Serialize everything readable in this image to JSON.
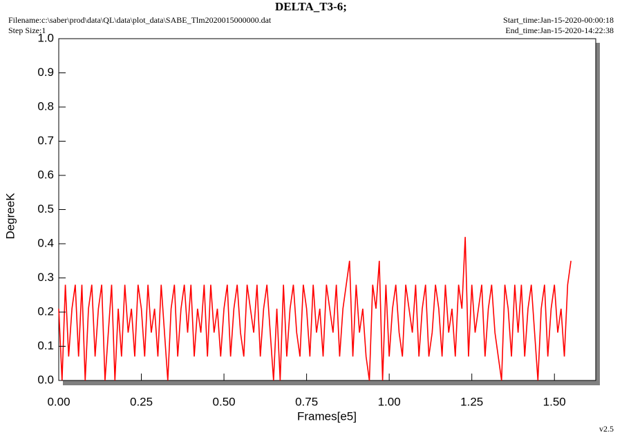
{
  "chart_data": {
    "type": "line",
    "title": "DELTA_T3-6;",
    "filename": "Filename:c:\\saber\\prod\\data\\QL\\data\\plot_data\\SABE_Tlm2020015000000.dat",
    "step_size": "Step Size:1",
    "start_time": "Start_time:Jan-15-2020-00:00:18",
    "end_time": "End_time:Jan-15-2020-14:22:38",
    "x_label": "Frames[e5]",
    "y_label": "DegreeK",
    "version": "v2.5",
    "color": "#ff0000",
    "xlim": [
      0,
      1.625
    ],
    "ylim": [
      0,
      1
    ],
    "xticks": [
      {
        "value": 0,
        "label": "0.00"
      },
      0.25,
      {
        "value": 0.5,
        "label": "0.50"
      },
      0.75,
      {
        "value": 1,
        "label": "1.00"
      },
      1.25,
      {
        "value": 1.5,
        "label": "1.50"
      }
    ],
    "yticks": [
      {
        "value": 0,
        "label": "0.0"
      },
      0.1,
      0.2,
      0.3,
      0.4,
      0.5,
      0.6,
      0.7,
      0.8,
      0.9,
      {
        "value": 1,
        "label": "1.0"
      }
    ],
    "x": [
      0.0,
      0.01,
      0.02,
      0.03,
      0.04,
      0.05,
      0.06,
      0.07,
      0.08,
      0.09,
      0.1,
      0.11,
      0.12,
      0.13,
      0.14,
      0.15,
      0.16,
      0.17,
      0.18,
      0.19,
      0.2,
      0.21,
      0.22,
      0.23,
      0.24,
      0.25,
      0.26,
      0.27,
      0.28,
      0.29,
      0.3,
      0.31,
      0.32,
      0.33,
      0.34,
      0.35,
      0.36,
      0.37,
      0.38,
      0.39,
      0.4,
      0.41,
      0.42,
      0.43,
      0.44,
      0.45,
      0.46,
      0.47,
      0.48,
      0.49,
      0.5,
      0.51,
      0.52,
      0.53,
      0.54,
      0.55,
      0.56,
      0.57,
      0.58,
      0.59,
      0.6,
      0.61,
      0.62,
      0.63,
      0.64,
      0.65,
      0.66,
      0.67,
      0.68,
      0.69,
      0.7,
      0.71,
      0.72,
      0.73,
      0.74,
      0.75,
      0.76,
      0.77,
      0.78,
      0.79,
      0.8,
      0.81,
      0.82,
      0.83,
      0.84,
      0.85,
      0.86,
      0.87,
      0.88,
      0.89,
      0.9,
      0.91,
      0.92,
      0.93,
      0.94,
      0.95,
      0.96,
      0.97,
      0.98,
      0.99,
      1.0,
      1.01,
      1.02,
      1.03,
      1.04,
      1.05,
      1.06,
      1.07,
      1.08,
      1.09,
      1.1,
      1.11,
      1.12,
      1.13,
      1.14,
      1.15,
      1.16,
      1.17,
      1.18,
      1.19,
      1.2,
      1.21,
      1.22,
      1.23,
      1.24,
      1.25,
      1.26,
      1.27,
      1.28,
      1.29,
      1.3,
      1.31,
      1.32,
      1.33,
      1.34,
      1.35,
      1.36,
      1.37,
      1.38,
      1.39,
      1.4,
      1.41,
      1.42,
      1.43,
      1.44,
      1.45,
      1.46,
      1.47,
      1.48,
      1.49,
      1.5,
      1.51,
      1.52,
      1.53,
      1.54,
      1.55
    ],
    "values": [
      0.21,
      0.0,
      0.28,
      0.07,
      0.21,
      0.28,
      0.07,
      0.28,
      0.0,
      0.21,
      0.28,
      0.07,
      0.21,
      0.28,
      0.0,
      0.14,
      0.28,
      0.0,
      0.21,
      0.07,
      0.28,
      0.14,
      0.21,
      0.07,
      0.28,
      0.21,
      0.07,
      0.28,
      0.14,
      0.21,
      0.07,
      0.28,
      0.14,
      0.0,
      0.21,
      0.28,
      0.07,
      0.21,
      0.28,
      0.14,
      0.28,
      0.07,
      0.21,
      0.14,
      0.28,
      0.07,
      0.28,
      0.14,
      0.21,
      0.07,
      0.21,
      0.28,
      0.07,
      0.21,
      0.28,
      0.14,
      0.07,
      0.28,
      0.21,
      0.14,
      0.28,
      0.07,
      0.21,
      0.28,
      0.14,
      0.0,
      0.21,
      0.0,
      0.28,
      0.07,
      0.21,
      0.28,
      0.14,
      0.07,
      0.28,
      0.21,
      0.07,
      0.28,
      0.14,
      0.21,
      0.07,
      0.28,
      0.21,
      0.14,
      0.28,
      0.07,
      0.21,
      0.28,
      0.35,
      0.07,
      0.28,
      0.14,
      0.21,
      0.07,
      0.0,
      0.28,
      0.21,
      0.35,
      0.0,
      0.28,
      0.07,
      0.21,
      0.28,
      0.14,
      0.07,
      0.28,
      0.21,
      0.14,
      0.28,
      0.07,
      0.21,
      0.28,
      0.07,
      0.14,
      0.28,
      0.21,
      0.07,
      0.28,
      0.14,
      0.21,
      0.07,
      0.28,
      0.21,
      0.42,
      0.07,
      0.28,
      0.14,
      0.21,
      0.28,
      0.07,
      0.21,
      0.28,
      0.14,
      0.07,
      0.0,
      0.28,
      0.21,
      0.07,
      0.28,
      0.14,
      0.28,
      0.07,
      0.21,
      0.28,
      0.14,
      0.0,
      0.21,
      0.28,
      0.07,
      0.21,
      0.28,
      0.14,
      0.21,
      0.07,
      0.28,
      0.35
    ]
  }
}
